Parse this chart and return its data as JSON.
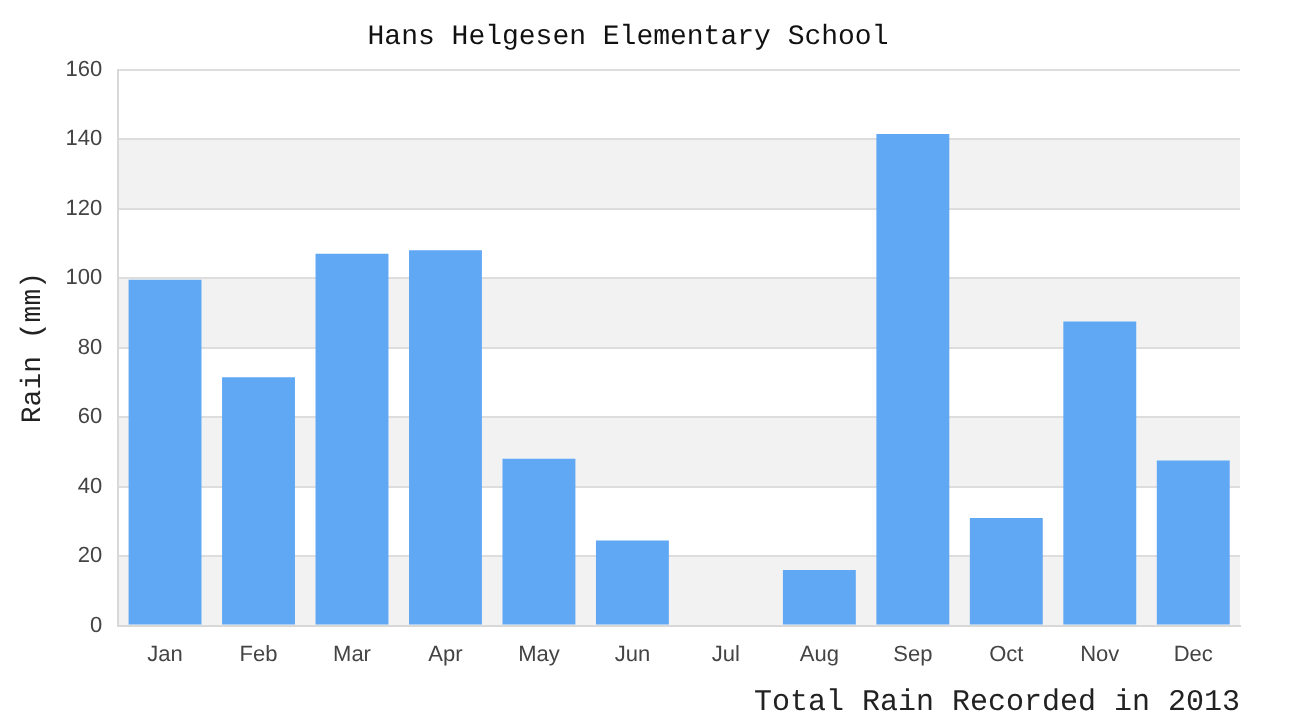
{
  "chart_data": {
    "type": "bar",
    "title": "Hans Helgesen Elementary School",
    "ylabel": "Rain (mm)",
    "categories": [
      "Jan",
      "Feb",
      "Mar",
      "Apr",
      "May",
      "Jun",
      "Jul",
      "Aug",
      "Sep",
      "Oct",
      "Nov",
      "Dec"
    ],
    "values": [
      99.5,
      71.5,
      107,
      108,
      48,
      24.5,
      0,
      16,
      141.5,
      31,
      87.5,
      47.5
    ],
    "color": "#61a8f4",
    "ylim": [
      0,
      160
    ],
    "yticks": [
      0,
      20,
      40,
      60,
      80,
      100,
      120,
      140,
      160
    ],
    "grid": "y",
    "legend": false,
    "annotations": [
      "Total Rain Recorded in 2013"
    ]
  }
}
